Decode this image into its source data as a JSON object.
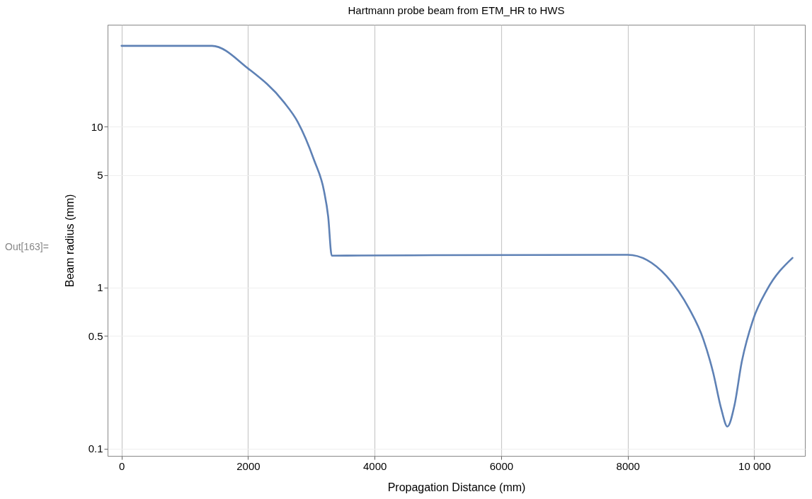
{
  "chart_data": {
    "type": "line",
    "title": "Hartmann probe beam from ETM_HR to HWS",
    "xlabel": "Propagation Distance (mm)",
    "ylabel": "Beam radius (mm)",
    "annotations": [
      "Out[163]="
    ],
    "x": [
      0,
      1430,
      2000,
      2560,
      2785,
      3043,
      3199,
      3266,
      3322,
      3330,
      5000,
      8000,
      8613,
      8970,
      9195,
      9350,
      9475,
      9575,
      9687,
      9799,
      9978,
      10201,
      10604
    ],
    "series": [
      {
        "color": "#5e81b5",
        "values": [
          31.8,
          31.8,
          23,
          14.3,
          10.7,
          6.2,
          4.0,
          2.76,
          1.58,
          1.58,
          1.59,
          1.6,
          1.18,
          0.74,
          0.477,
          0.296,
          0.178,
          0.137,
          0.186,
          0.341,
          0.627,
          0.97,
          1.53
        ]
      }
    ],
    "log": "y",
    "grid": true,
    "marker": "none",
    "line_style": "solid",
    "xlim": [
      -220,
      10800
    ],
    "ylim": [
      0.09,
      43
    ],
    "xticks": [
      0,
      2000,
      4000,
      6000,
      8000,
      {
        "value": 10000,
        "label": "10 000"
      }
    ],
    "yticks": [
      0.1,
      0.5,
      1,
      5,
      10
    ]
  }
}
